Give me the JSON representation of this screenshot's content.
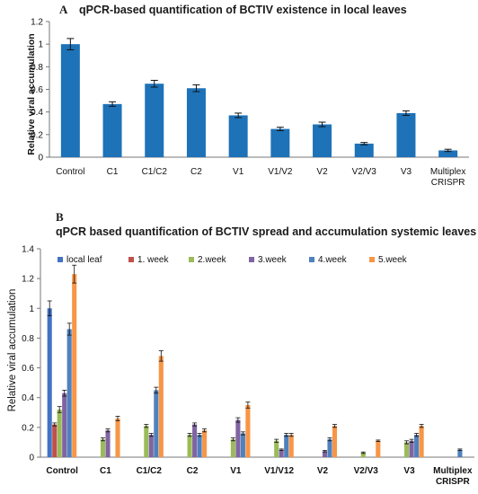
{
  "chart_data": [
    {
      "type": "bar",
      "panel_label": "A",
      "title": "qPCR-based quantification of BCTIV existence in local leaves",
      "ylabel": "Relative viral accumulation",
      "xlabel": "",
      "ylim": [
        0,
        1.2
      ],
      "yticks": [
        "0",
        "0.2",
        "0.4",
        "0.6",
        "0.8",
        "1",
        "1.2"
      ],
      "categories": [
        "Control",
        "C1",
        "C1/C2",
        "C2",
        "V1",
        "V1/V2",
        "V2",
        "V2/V3",
        "V3",
        "Multiplex CRISPR"
      ],
      "category_lines": [
        [
          "Control"
        ],
        [
          "C1"
        ],
        [
          "C1/C2"
        ],
        [
          "C2"
        ],
        [
          "V1"
        ],
        [
          "V1/V2"
        ],
        [
          "V2"
        ],
        [
          "V2/V3"
        ],
        [
          "V3"
        ],
        [
          "Multiplex",
          "CRISPR"
        ]
      ],
      "values": [
        1.0,
        0.47,
        0.65,
        0.61,
        0.37,
        0.25,
        0.29,
        0.12,
        0.39,
        0.06
      ],
      "errors": [
        0.05,
        0.02,
        0.03,
        0.03,
        0.02,
        0.015,
        0.02,
        0.01,
        0.02,
        0.01
      ],
      "grid": false,
      "colors": {
        "bar": "#1d72b8",
        "error": "#111111"
      }
    },
    {
      "type": "bar",
      "panel_label": "B",
      "title": "qPCR based quantification of BCTIV spread and accumulation systemic leaves",
      "ylabel": "Relative viral accumulation",
      "xlabel": "",
      "ylim": [
        0,
        1.4
      ],
      "yticks": [
        "0",
        "0.2",
        "0.4",
        "0.6",
        "0.8",
        "1",
        "1.2",
        "1.4"
      ],
      "legend_position": "top",
      "categories": [
        "Control",
        "C1",
        "C1/C2",
        "C2",
        "V1",
        "V1/V12",
        "V2",
        "V2/V3",
        "V3",
        "Multiplex CRISPR"
      ],
      "category_lines": [
        [
          "Control"
        ],
        [
          "C1"
        ],
        [
          "C1/C2"
        ],
        [
          "C2"
        ],
        [
          "V1"
        ],
        [
          "V1/V12"
        ],
        [
          "V2"
        ],
        [
          "V2/V3"
        ],
        [
          "V3"
        ],
        [
          "Multiplex",
          "CRISPR"
        ]
      ],
      "series": [
        {
          "name": "local leaf",
          "color": "#4472c4",
          "values": [
            1.0,
            0,
            0,
            0,
            0,
            0,
            0,
            0,
            0,
            0
          ],
          "errors": [
            0.05,
            0,
            0,
            0,
            0,
            0,
            0,
            0,
            0,
            0
          ]
        },
        {
          "name": "1. week",
          "color": "#c0504d",
          "values": [
            0.22,
            0,
            0,
            0,
            0,
            0,
            0,
            0,
            0,
            0
          ],
          "errors": [
            0.01,
            0,
            0,
            0,
            0,
            0,
            0,
            0,
            0,
            0
          ]
        },
        {
          "name": "2.week",
          "color": "#9bbb59",
          "values": [
            0.32,
            0.12,
            0.21,
            0.15,
            0.12,
            0.11,
            0,
            0.03,
            0.1,
            0
          ],
          "errors": [
            0.02,
            0.01,
            0.01,
            0.01,
            0.01,
            0.01,
            0,
            0.005,
            0.01,
            0
          ]
        },
        {
          "name": "3.week",
          "color": "#8064a2",
          "values": [
            0.43,
            0.18,
            0.15,
            0.22,
            0.25,
            0.05,
            0.04,
            0,
            0.11,
            0
          ],
          "errors": [
            0.02,
            0.01,
            0.01,
            0.01,
            0.015,
            0.005,
            0.005,
            0,
            0.01,
            0
          ]
        },
        {
          "name": "4.week",
          "color": "#4f81bd",
          "values": [
            0.86,
            0,
            0.45,
            0.15,
            0.16,
            0.15,
            0.12,
            0,
            0.15,
            0.05
          ],
          "errors": [
            0.04,
            0,
            0.02,
            0.01,
            0.01,
            0.01,
            0.01,
            0,
            0.01,
            0.005
          ]
        },
        {
          "name": "5.week",
          "color": "#f79646",
          "values": [
            1.23,
            0.26,
            0.68,
            0.18,
            0.35,
            0.15,
            0.21,
            0.11,
            0.21,
            0
          ],
          "errors": [
            0.06,
            0.015,
            0.035,
            0.01,
            0.02,
            0.01,
            0.01,
            0.005,
            0.01,
            0
          ]
        }
      ],
      "grid": false
    }
  ]
}
